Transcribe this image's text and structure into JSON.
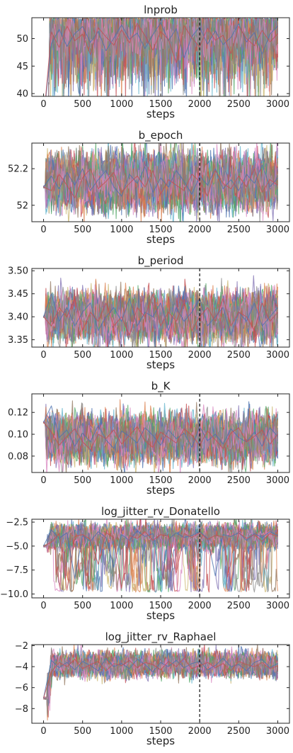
{
  "chart_data": [
    {
      "type": "line",
      "title": "lnprob",
      "xlabel": "steps",
      "ylabel": "",
      "xlim": [
        -150,
        3150
      ],
      "ylim": [
        39.5,
        53.8
      ],
      "xticks": [
        0,
        500,
        1000,
        1500,
        2000,
        2500,
        3000
      ],
      "yticks": [
        40,
        45,
        50
      ],
      "vline_x": 2000,
      "grid": false,
      "behavior": "burnin_climb",
      "burnin_start": 5,
      "mean": 50.5,
      "spread": 3.2,
      "upper_cap": 53.4,
      "series": [
        {
          "values": [
            35,
            49.1,
            51.7,
            48.6,
            50.9,
            52.2,
            49.3,
            51.3,
            47.8,
            50.1,
            52.5,
            49.9,
            51.0,
            48.2,
            50.7,
            52.9,
            49.6,
            51.8,
            46.5,
            50.4,
            52.1,
            49.0,
            51.4,
            48.9,
            50.2,
            52.7,
            49.4,
            51.1,
            47.2,
            50.8,
            52.3
          ]
        },
        {
          "values": [
            35,
            51.2,
            48.4,
            52.3,
            49.6,
            50.8,
            47.1,
            52.0,
            50.3,
            48.8,
            51.6,
            49.2,
            52.8,
            50.5,
            47.9,
            51.3,
            49.8,
            45.6,
            52.4,
            50.1,
            48.5,
            51.9,
            49.7,
            50.6,
            47.3,
            52.2,
            50.0,
            48.7,
            51.5,
            49.4,
            50.9
          ]
        }
      ]
    },
    {
      "type": "line",
      "title": "b_epoch",
      "xlabel": "steps",
      "ylabel": "",
      "xlim": [
        -150,
        3150
      ],
      "ylim": [
        51.91,
        52.34
      ],
      "xticks": [
        0,
        500,
        1000,
        1500,
        2000,
        2500,
        3000
      ],
      "yticks": [
        52.0,
        52.2
      ],
      "vline_x": 2000,
      "grid": false,
      "behavior": "stationary",
      "start_value": 52.1,
      "mean": 52.13,
      "spread": 0.065,
      "series": [
        {
          "values": [
            52.1,
            52.16,
            52.09,
            52.18,
            52.11,
            52.2,
            52.08,
            52.14,
            52.19,
            52.1,
            52.05,
            52.17,
            52.12,
            52.21,
            52.07,
            52.15,
            52.1,
            52.19,
            52.13,
            52.06,
            52.16,
            52.11,
            52.2,
            52.09,
            52.14,
            52.08,
            52.17,
            52.12,
            52.22,
            52.1,
            52.15
          ]
        },
        {
          "values": [
            52.1,
            52.08,
            52.17,
            52.11,
            52.04,
            52.15,
            52.2,
            52.09,
            52.13,
            52.18,
            52.07,
            52.12,
            52.16,
            52.1,
            52.19,
            52.06,
            52.14,
            52.11,
            52.08,
            52.17,
            52.13,
            52.05,
            52.19,
            52.12,
            52.09,
            52.16,
            52.1,
            52.2,
            52.07,
            52.14,
            52.11
          ]
        }
      ]
    },
    {
      "type": "line",
      "title": "b_period",
      "xlabel": "steps",
      "ylabel": "",
      "xlim": [
        -150,
        3150
      ],
      "ylim": [
        3.334,
        3.505
      ],
      "xticks": [
        0,
        500,
        1000,
        1500,
        2000,
        2500,
        3000
      ],
      "yticks": [
        3.35,
        3.4,
        3.45,
        3.5
      ],
      "tick_labels": [
        "3.35",
        "3.40",
        "3.45",
        "3.50"
      ],
      "vline_x": 2000,
      "grid": false,
      "behavior": "stationary",
      "start_value": 3.4,
      "mean": 3.4,
      "spread": 0.022,
      "series": [
        {
          "values": [
            3.4,
            3.45,
            3.39,
            3.42,
            3.38,
            3.41,
            3.43,
            3.37,
            3.4,
            3.42,
            3.39,
            3.44,
            3.38,
            3.41,
            3.4,
            3.43,
            3.37,
            3.42,
            3.39,
            3.41,
            3.44,
            3.38,
            3.4,
            3.42,
            3.36,
            3.41,
            3.39,
            3.43,
            3.38,
            3.4,
            3.42
          ]
        },
        {
          "values": [
            3.4,
            3.38,
            3.42,
            3.4,
            3.44,
            3.37,
            3.41,
            3.39,
            3.43,
            3.38,
            3.4,
            3.36,
            3.42,
            3.4,
            3.45,
            3.38,
            3.41,
            3.39,
            3.43,
            3.37,
            3.4,
            3.42,
            3.39,
            3.44,
            3.38,
            3.41,
            3.4,
            3.37,
            3.43,
            3.39,
            3.41
          ]
        }
      ]
    },
    {
      "type": "line",
      "title": "b_K",
      "xlabel": "steps",
      "ylabel": "",
      "xlim": [
        -150,
        3150
      ],
      "ylim": [
        0.065,
        0.137
      ],
      "xticks": [
        0,
        500,
        1000,
        1500,
        2000,
        2500,
        3000
      ],
      "yticks": [
        0.08,
        0.1,
        0.12
      ],
      "tick_labels": [
        "0.08",
        "0.10",
        "0.12"
      ],
      "vline_x": 2000,
      "grid": false,
      "behavior": "stationary",
      "start_value": 0.111,
      "mean": 0.096,
      "spread": 0.009,
      "series": [
        {
          "values": [
            0.111,
            0.126,
            0.097,
            0.104,
            0.089,
            0.101,
            0.093,
            0.108,
            0.095,
            0.087,
            0.103,
            0.098,
            0.092,
            0.106,
            0.099,
            0.09,
            0.104,
            0.096,
            0.101,
            0.088,
            0.107,
            0.094,
            0.1,
            0.091,
            0.105,
            0.097,
            0.093,
            0.102,
            0.089,
            0.106,
            0.098
          ]
        },
        {
          "values": [
            0.111,
            0.102,
            0.09,
            0.098,
            0.105,
            0.093,
            0.086,
            0.1,
            0.096,
            0.104,
            0.091,
            0.099,
            0.107,
            0.094,
            0.088,
            0.102,
            0.097,
            0.092,
            0.105,
            0.099,
            0.09,
            0.103,
            0.095,
            0.087,
            0.101,
            0.106,
            0.093,
            0.098,
            0.104,
            0.091,
            0.1
          ]
        }
      ]
    },
    {
      "type": "line",
      "title": "log_jitter_rv_Donatello",
      "xlabel": "steps",
      "ylabel": "",
      "xlim": [
        -150,
        3150
      ],
      "ylim": [
        -10.4,
        -2.2
      ],
      "xticks": [
        0,
        500,
        1000,
        1500,
        2000,
        2500,
        3000
      ],
      "yticks": [
        -10.0,
        -7.5,
        -5.0,
        -2.5
      ],
      "tick_labels": [
        "−10.0",
        "−7.5",
        "−5.0",
        "−2.5"
      ],
      "vline_x": 2000,
      "grid": false,
      "behavior": "jitter_dips",
      "start_value": -5.0,
      "mean": -4.0,
      "spread": 0.55,
      "dip_floor": -9.8,
      "series": [
        {
          "values": [
            -5.0,
            -3.3,
            -4.2,
            -3.6,
            -8.4,
            -3.9,
            -4.5,
            -3.5,
            -4.1,
            -7.2,
            -3.8,
            -4.4,
            -3.4,
            -4.0,
            -3.7,
            -9.1,
            -4.3,
            -3.6,
            -4.1,
            -3.9,
            -3.5,
            -4.2,
            -8.1,
            -3.8,
            -4.0,
            -3.6,
            -4.4,
            -3.7,
            -4.1,
            -3.5,
            -3.9
          ]
        },
        {
          "values": [
            -5.0,
            -4.6,
            -3.7,
            -9.6,
            -4.0,
            -3.8,
            -4.3,
            -6.9,
            -3.6,
            -4.1,
            -9.4,
            -3.9,
            -4.2,
            -3.5,
            -4.4,
            -3.8,
            -4.0,
            -7.8,
            -3.7,
            -4.1,
            -3.6,
            -4.3,
            -3.9,
            -4.0,
            -9.0,
            -3.6,
            -4.2,
            -3.8,
            -4.5,
            -3.7,
            -4.0
          ]
        }
      ]
    },
    {
      "type": "line",
      "title": "log_jitter_rv_Raphael",
      "xlabel": "steps",
      "ylabel": "",
      "xlim": [
        -150,
        3150
      ],
      "ylim": [
        -9.4,
        -1.9
      ],
      "xticks": [
        0,
        500,
        1000,
        1500,
        2000,
        2500,
        3000
      ],
      "yticks": [
        -8,
        -6,
        -4,
        -2
      ],
      "tick_labels": [
        "−8",
        "−6",
        "−4",
        "−2"
      ],
      "vline_x": 2000,
      "grid": false,
      "behavior": "burnin_rise",
      "start_value": -7.0,
      "mean": -3.8,
      "spread": 0.5,
      "series": [
        {
          "values": [
            -7.0,
            -3.4,
            -4.1,
            -3.6,
            -4.3,
            -3.5,
            -3.9,
            -4.4,
            -3.2,
            -4.0,
            -3.7,
            -4.2,
            -3.3,
            -3.8,
            -4.5,
            -3.6,
            -4.0,
            -3.4,
            -4.1,
            -3.7,
            -3.5,
            -4.3,
            -3.9,
            -3.2,
            -4.0,
            -3.8,
            -4.4,
            -3.6,
            -3.3,
            -4.1,
            -3.7
          ]
        },
        {
          "values": [
            -7.0,
            -4.5,
            -3.6,
            -4.0,
            -3.3,
            -4.2,
            -3.8,
            -3.5,
            -4.4,
            -3.7,
            -3.9,
            -3.4,
            -4.1,
            -3.6,
            -3.8,
            -4.3,
            -3.5,
            -4.0,
            -3.2,
            -4.2,
            -3.9,
            -3.6,
            -4.1,
            -3.7,
            -4.4,
            -3.5,
            -3.8,
            -4.0,
            -3.6,
            -4.2,
            -3.9
          ]
        }
      ]
    }
  ],
  "colors": [
    "#4c72b0",
    "#dd8452",
    "#55a868",
    "#c44e52",
    "#8172b3",
    "#937860",
    "#da8bc3",
    "#8c8c8c",
    "#ccb974",
    "#64b5cd"
  ],
  "walkers_per_panel": 48
}
